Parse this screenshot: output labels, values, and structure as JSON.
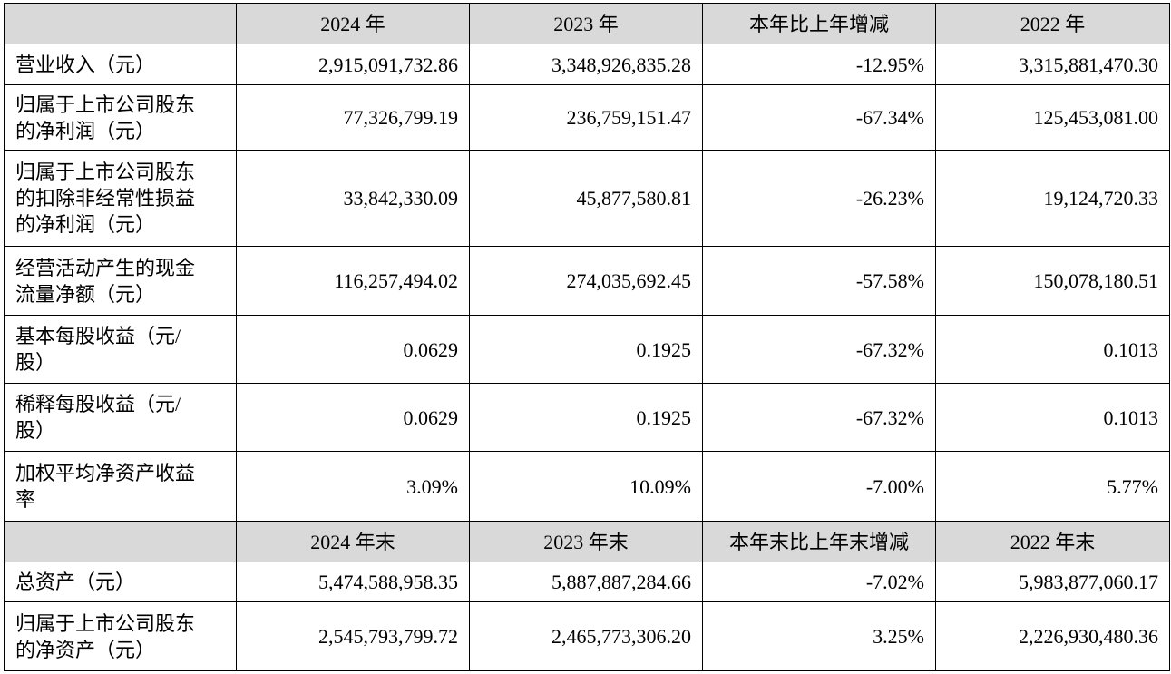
{
  "headers1": [
    "2024 年",
    "2023 年",
    "本年比上年增减",
    "2022 年"
  ],
  "rows1": [
    {
      "label": [
        "营业收入（元）"
      ],
      "values": [
        "2,915,091,732.86",
        "3,348,926,835.28",
        "-12.95%",
        "3,315,881,470.30"
      ]
    },
    {
      "label": [
        "归属于上市公司股东",
        "的净利润（元）"
      ],
      "values": [
        "77,326,799.19",
        "236,759,151.47",
        "-67.34%",
        "125,453,081.00"
      ]
    },
    {
      "label": [
        "归属于上市公司股东",
        "的扣除非经常性损益",
        "的净利润（元）"
      ],
      "values": [
        "33,842,330.09",
        "45,877,580.81",
        "-26.23%",
        "19,124,720.33"
      ]
    },
    {
      "label": [
        "经营活动产生的现金",
        "流量净额（元）"
      ],
      "values": [
        "116,257,494.02",
        "274,035,692.45",
        "-57.58%",
        "150,078,180.51"
      ]
    },
    {
      "label": [
        "基本每股收益（元/",
        "股）"
      ],
      "values": [
        "0.0629",
        "0.1925",
        "-67.32%",
        "0.1013"
      ]
    },
    {
      "label": [
        "稀释每股收益（元/",
        "股）"
      ],
      "values": [
        "0.0629",
        "0.1925",
        "-67.32%",
        "0.1013"
      ]
    },
    {
      "label": [
        "加权平均净资产收益",
        "率"
      ],
      "values": [
        "3.09%",
        "10.09%",
        "-7.00%",
        "5.77%"
      ]
    }
  ],
  "headers2": [
    "2024 年末",
    "2023 年末",
    "本年末比上年末增减",
    "2022 年末"
  ],
  "rows2": [
    {
      "label": [
        "总资产（元）"
      ],
      "values": [
        "5,474,588,958.35",
        "5,887,887,284.66",
        "-7.02%",
        "5,983,877,060.17"
      ]
    },
    {
      "label": [
        "归属于上市公司股东",
        "的净资产（元）"
      ],
      "values": [
        "2,545,793,799.72",
        "2,465,773,306.20",
        "3.25%",
        "2,226,930,480.36"
      ]
    }
  ]
}
